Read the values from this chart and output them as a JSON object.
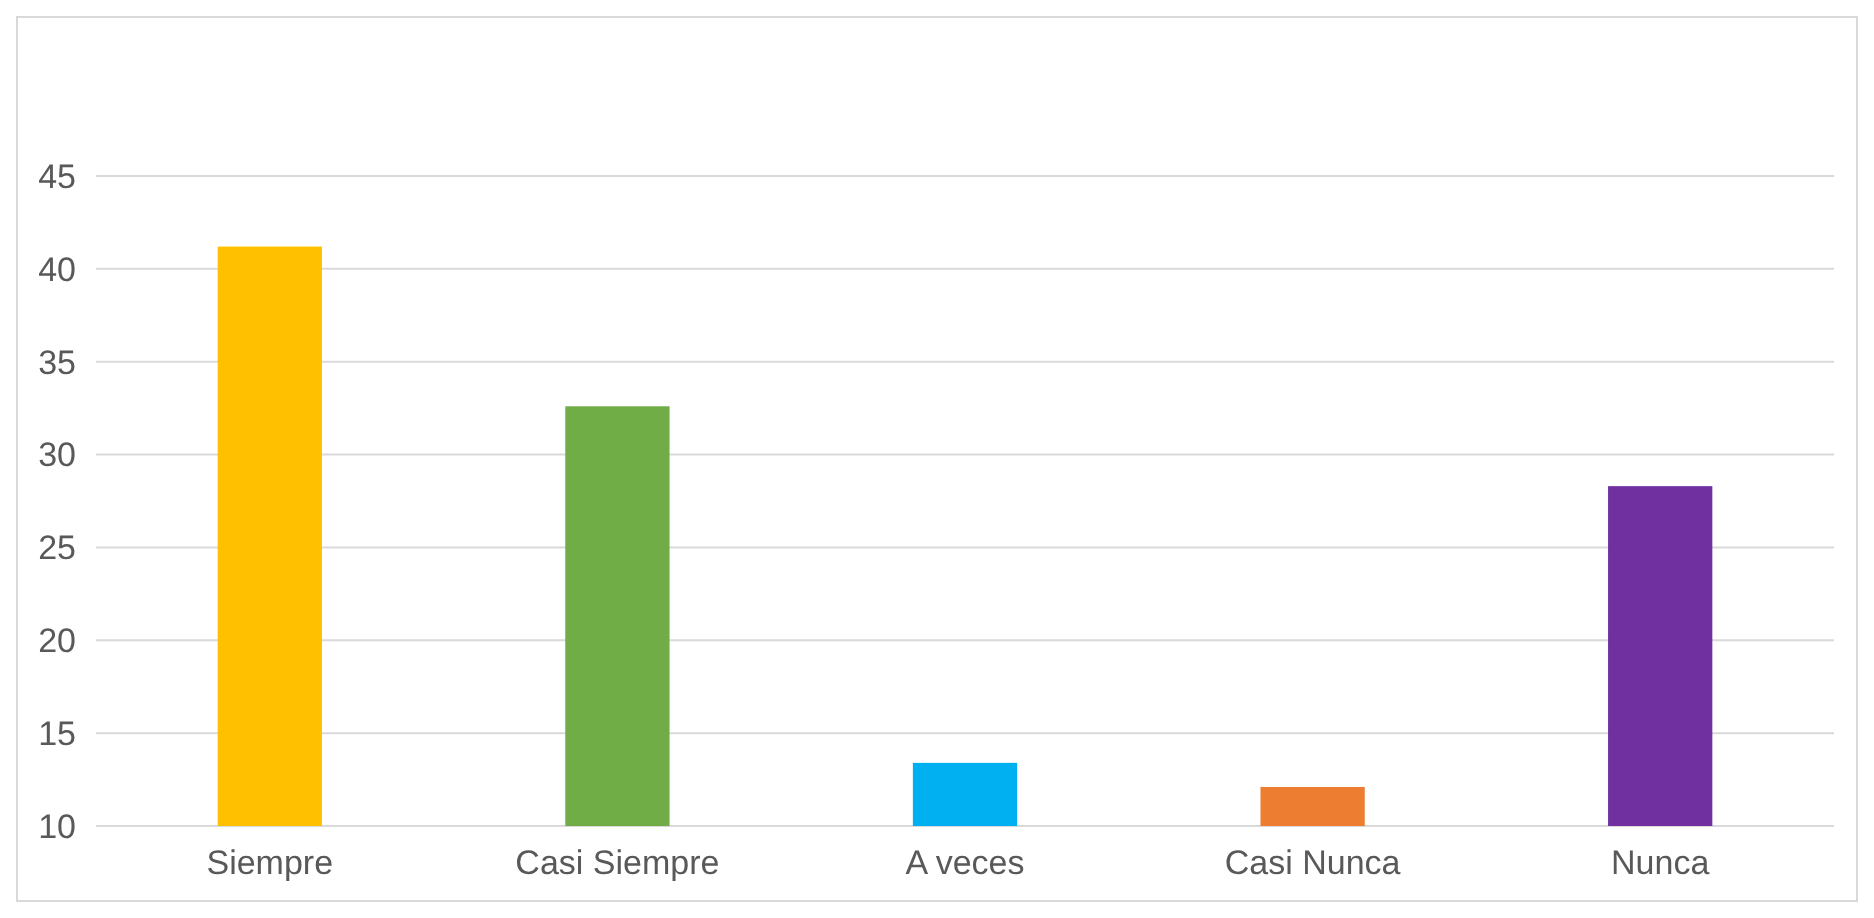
{
  "chart_data": {
    "type": "bar",
    "categories": [
      "Siempre",
      "Casi Siempre",
      "A veces",
      "Casi Nunca",
      "Nunca"
    ],
    "values": [
      41.2,
      32.6,
      13.4,
      12.1,
      28.3
    ],
    "colors": [
      "#ffc000",
      "#70ad47",
      "#00b0f0",
      "#ed7d31",
      "#7030a0"
    ],
    "ylim": [
      10,
      45
    ],
    "yticks": [
      10,
      15,
      20,
      25,
      30,
      35,
      40,
      45
    ],
    "grid": "y"
  }
}
